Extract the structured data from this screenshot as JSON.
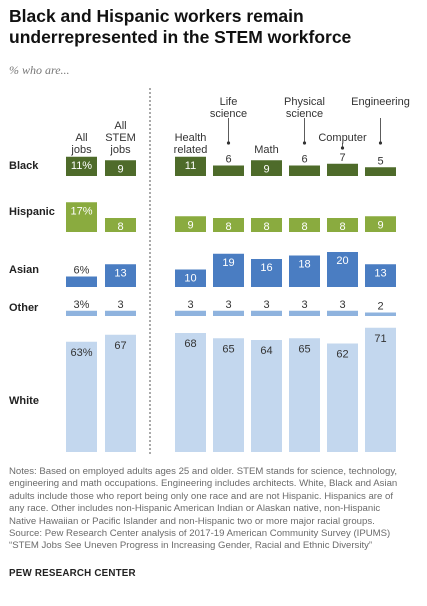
{
  "title": "Black and Hispanic workers remain underrepresented in the STEM workforce",
  "subtitle": "% who are...",
  "chart_data": {
    "type": "bar",
    "title": "Black and Hispanic workers remain underrepresented in the STEM workforce",
    "subtitle": "% who are...",
    "categories": [
      "All jobs",
      "All STEM jobs",
      "Health related",
      "Life science",
      "Math",
      "Physical science",
      "Computer",
      "Engineering"
    ],
    "category_labels": [
      [
        "All",
        "jobs"
      ],
      [
        "All",
        "STEM",
        "jobs"
      ],
      [
        "Health",
        "related"
      ],
      [
        "Life",
        "science"
      ],
      [
        "Math"
      ],
      [
        "Physical",
        "science"
      ],
      [
        "Computer"
      ],
      [
        "Engineering"
      ]
    ],
    "groups": [
      "Black",
      "Hispanic",
      "Asian",
      "Other",
      "White"
    ],
    "series": [
      {
        "name": "Black",
        "values": [
          11,
          9,
          11,
          6,
          9,
          6,
          7,
          5
        ]
      },
      {
        "name": "Hispanic",
        "values": [
          17,
          8,
          9,
          8,
          8,
          8,
          8,
          9
        ]
      },
      {
        "name": "Asian",
        "values": [
          6,
          13,
          10,
          19,
          16,
          18,
          20,
          13
        ]
      },
      {
        "name": "Other",
        "values": [
          3,
          3,
          3,
          3,
          3,
          3,
          3,
          2
        ]
      },
      {
        "name": "White",
        "values": [
          63,
          67,
          68,
          65,
          64,
          65,
          62,
          71
        ]
      }
    ],
    "first_value_suffix": "%",
    "colors": {
      "Black": {
        "dark": "#4e6b2a",
        "light": "#4e6b2a"
      },
      "Hispanic": {
        "dark": "#8aab3f",
        "light": "#8aab3f"
      },
      "Asian": {
        "dark": "#4a7dc2",
        "light": "#4a7dc2"
      },
      "Other": {
        "dark": "#8fb3de",
        "light": "#8fb3de"
      },
      "White": {
        "dark": "#c3d7ee",
        "light": "#c3d7ee"
      }
    },
    "text_on_bar": {
      "Black": "#ffffff",
      "Hispanic": "#ffffff",
      "Asian": "#ffffff",
      "Other": "#333333",
      "White": "#333333"
    }
  },
  "notes": [
    "Notes: Based on employed adults ages 25 and older. STEM stands for science, technology,",
    "engineering and math occupations. Engineering includes architects. White, Black and Asian",
    "adults include those who report being only one race and are not Hispanic. Hispanics are of",
    "any race. Other includes non-Hispanic American Indian or Alaskan native, non-Hispanic",
    "Native Hawaiian or Pacific Islander and non-Hispanic two or more major racial groups.",
    "Source: Pew Research Center analysis of 2017-19 American Community Survey (IPUMS)",
    "“STEM Jobs See Uneven Progress in Increasing Gender, Racial and Ethnic Diversity”"
  ],
  "brand": "PEW RESEARCH CENTER"
}
